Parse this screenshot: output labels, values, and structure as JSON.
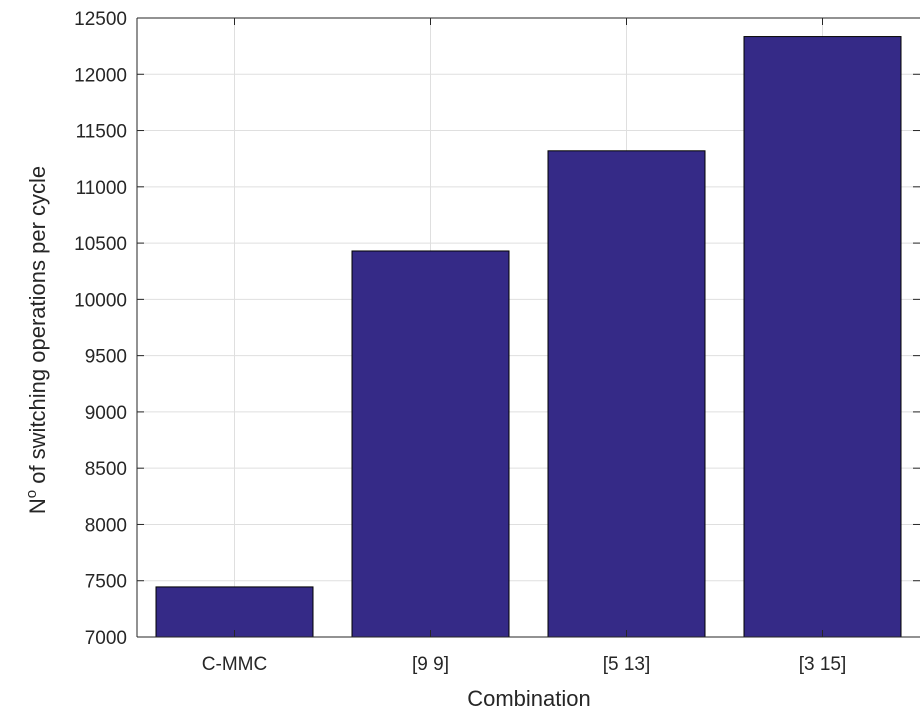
{
  "chart_data": {
    "type": "bar",
    "title": "",
    "xlabel": "Combination",
    "ylabel_parts": {
      "prefix": "N",
      "superscript": "o",
      "suffix": " of switching operations per cycle"
    },
    "categories": [
      "C-MMC",
      "[9 9]",
      "[5 13]",
      "[3 15]"
    ],
    "values": [
      7445,
      10430,
      11320,
      12335
    ],
    "ylim": [
      7000,
      12500
    ],
    "yticks": [
      7000,
      7500,
      8000,
      8500,
      9000,
      9500,
      10000,
      10500,
      11000,
      11500,
      12000,
      12500
    ],
    "grid": true,
    "legend": "none",
    "colors": {
      "bar_fill": "#352A87",
      "bar_edge": "#000000",
      "grid": "#DFDFDF",
      "axis": "#262626"
    }
  }
}
